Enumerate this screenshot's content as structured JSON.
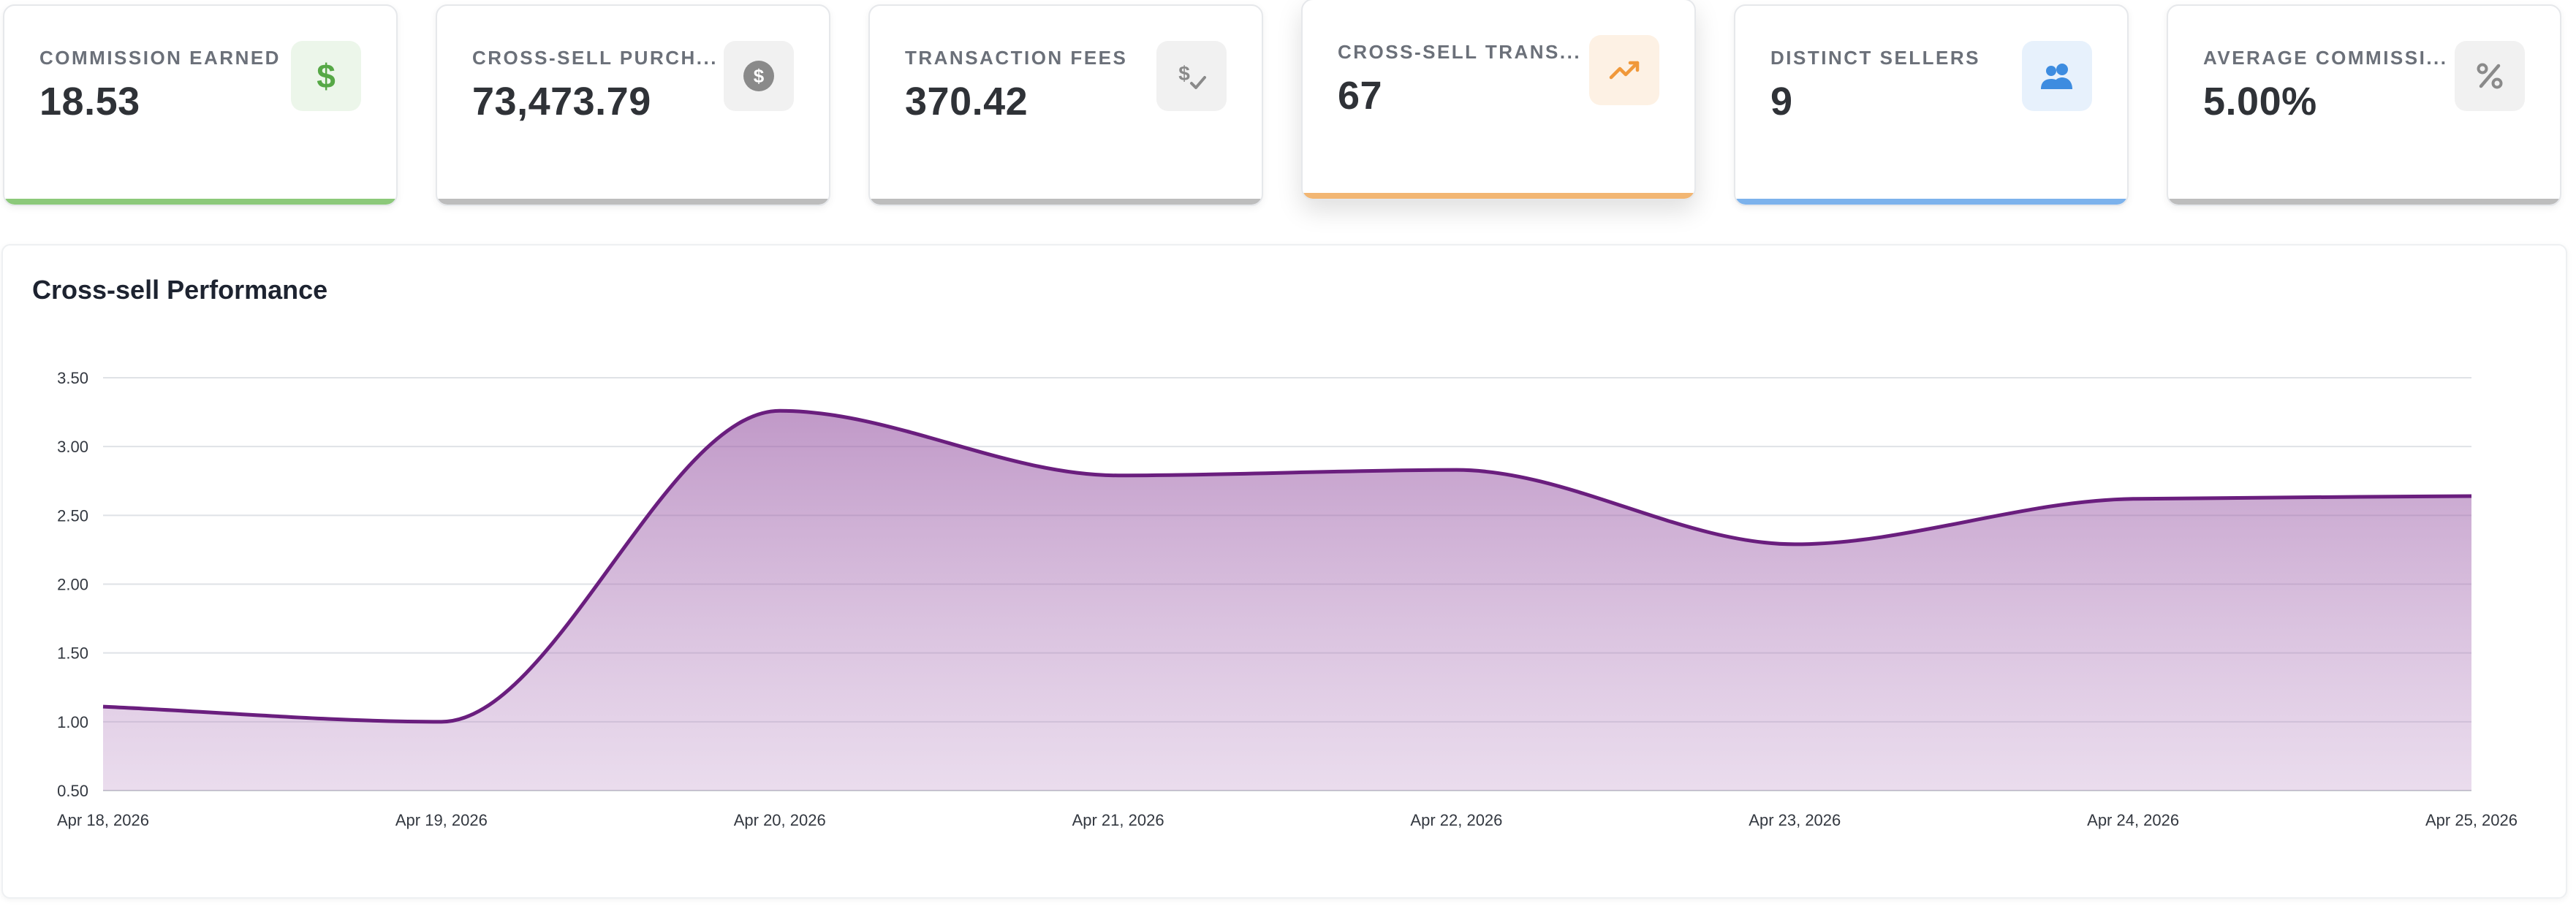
{
  "cards": [
    {
      "label": "COMMISSION EARNED",
      "value": "18.53",
      "icon": "dollar-icon",
      "accent": "#8cc97a",
      "icon_bg": "#ecf6ea",
      "icon_color": "#56a846"
    },
    {
      "label": "CROSS-SELL PURCH...",
      "value": "73,473.79",
      "icon": "coin-dollar-icon",
      "accent": "#bdbdbd",
      "icon_bg": "#f1f1f1",
      "icon_color": "#8a8a8a"
    },
    {
      "label": "TRANSACTION FEES",
      "value": "370.42",
      "icon": "dollar-check-icon",
      "accent": "#bdbdbd",
      "icon_bg": "#f1f1f1",
      "icon_color": "#8a8a8a"
    },
    {
      "label": "CROSS-SELL TRANS...",
      "value": "67",
      "icon": "trending-up-icon",
      "accent": "#f2b673",
      "icon_bg": "#fdf1e4",
      "icon_color": "#f0983a"
    },
    {
      "label": "DISTINCT SELLERS",
      "value": "9",
      "icon": "people-icon",
      "accent": "#7cb2ec",
      "icon_bg": "#e7f1fc",
      "icon_color": "#3d8ce0"
    },
    {
      "label": "AVERAGE COMMISSI...",
      "value": "5.00%",
      "icon": "percent-icon",
      "accent": "#bdbdbd",
      "icon_bg": "#f1f1f1",
      "icon_color": "#8a8a8a"
    }
  ],
  "panel": {
    "title": "Cross-sell Performance"
  },
  "chart_data": {
    "type": "area",
    "title": "Cross-sell Performance",
    "x": [
      "Apr 18, 2026",
      "Apr 19, 2026",
      "Apr 20, 2026",
      "Apr 21, 2026",
      "Apr 22, 2026",
      "Apr 23, 2026",
      "Apr 24, 2026",
      "Apr 25, 2026"
    ],
    "series": [
      {
        "values": [
          1.11,
          1.0,
          3.26,
          2.79,
          2.83,
          2.29,
          2.62,
          2.64
        ],
        "color": "#6a1e7e"
      }
    ],
    "yticks": [
      "0.50",
      "1.00",
      "1.50",
      "2.00",
      "2.50",
      "3.00",
      "3.50"
    ],
    "ylim": [
      0.5,
      3.5
    ],
    "grid": true
  }
}
